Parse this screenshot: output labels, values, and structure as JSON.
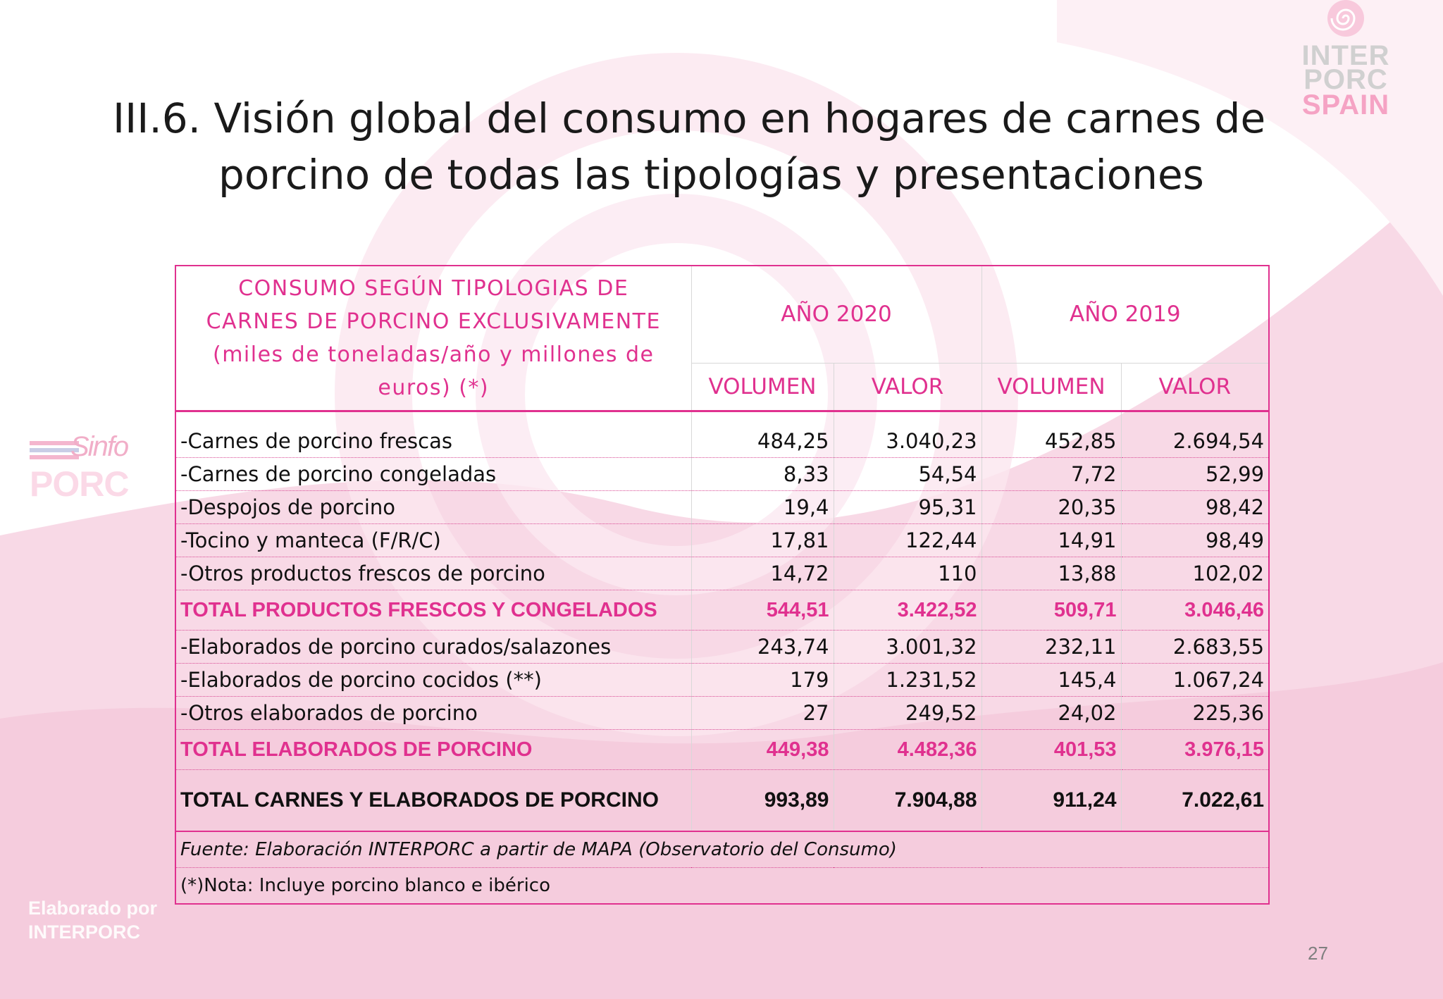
{
  "title": {
    "line1": "III.6. Visión global del consumo en hogares de carnes de",
    "line2": "porcino de todas las tipologías y presentaciones"
  },
  "logo": {
    "line1": "INTER",
    "line2": "PORC",
    "line3": "SPAIN"
  },
  "sinfo_logo": {
    "line1": "Sinfo",
    "line2": "PORC"
  },
  "watermark": {
    "line1": "Elaborado por",
    "line2": "INTERPORC"
  },
  "page_number": "27",
  "colors": {
    "accent": "#e0318f",
    "border": "#e0318f",
    "background_pink": "#f7d3e2"
  },
  "table": {
    "header_main": "CONSUMO SEGÚN TIPOLOGIAS DE CARNES DE PORCINO EXCLUSIVAMENTE (miles de toneladas/año y millones de euros) (*)",
    "year_a": "AÑO 2020",
    "year_b": "AÑO 2019",
    "col_volume": "VOLUMEN",
    "col_value": "VALOR",
    "rows": [
      {
        "label": "-Carnes de porcino frescas",
        "vol2020": "484,25",
        "val2020": "3.040,23",
        "vol2019": "452,85",
        "val2019": "2.694,54"
      },
      {
        "label": "-Carnes de porcino congeladas",
        "vol2020": "8,33",
        "val2020": "54,54",
        "vol2019": "7,72",
        "val2019": "52,99"
      },
      {
        "label": "-Despojos de porcino",
        "vol2020": "19,4",
        "val2020": "95,31",
        "vol2019": "20,35",
        "val2019": "98,42"
      },
      {
        "label": "-Tocino y manteca (F/R/C)",
        "vol2020": "17,81",
        "val2020": "122,44",
        "vol2019": "14,91",
        "val2019": "98,49"
      },
      {
        "label": "-Otros productos frescos de porcino",
        "vol2020": "14,72",
        "val2020": "110",
        "vol2019": "13,88",
        "val2019": "102,02"
      },
      {
        "label": "TOTAL PRODUCTOS  FRESCOS Y CONGELADOS",
        "vol2020": "544,51",
        "val2020": "3.422,52",
        "vol2019": "509,71",
        "val2019": "3.046,46"
      },
      {
        "label": "-Elaborados de porcino curados/salazones",
        "vol2020": "243,74",
        "val2020": "3.001,32",
        "vol2019": "232,11",
        "val2019": "2.683,55"
      },
      {
        "label": "-Elaborados de porcino cocidos (**)",
        "vol2020": "179",
        "val2020": "1.231,52",
        "vol2019": "145,4",
        "val2019": "1.067,24"
      },
      {
        "label": "-Otros elaborados de porcino",
        "vol2020": "27",
        "val2020": "249,52",
        "vol2019": "24,02",
        "val2019": "225,36"
      },
      {
        "label": "TOTAL ELABORADOS DE PORCINO",
        "vol2020": "449,38",
        "val2020": "4.482,36",
        "vol2019": "401,53",
        "val2019": "3.976,15"
      },
      {
        "label": "TOTAL CARNES Y ELABORADOS DE PORCINO",
        "vol2020": "993,89",
        "val2020": "7.904,88",
        "vol2019": "911,24",
        "val2019": "7.022,61"
      }
    ],
    "source": "Fuente: Elaboración INTERPORC  a partir de MAPA (Observatorio del Consumo)",
    "note": "(*)Nota: Incluye porcino blanco e ibérico"
  }
}
